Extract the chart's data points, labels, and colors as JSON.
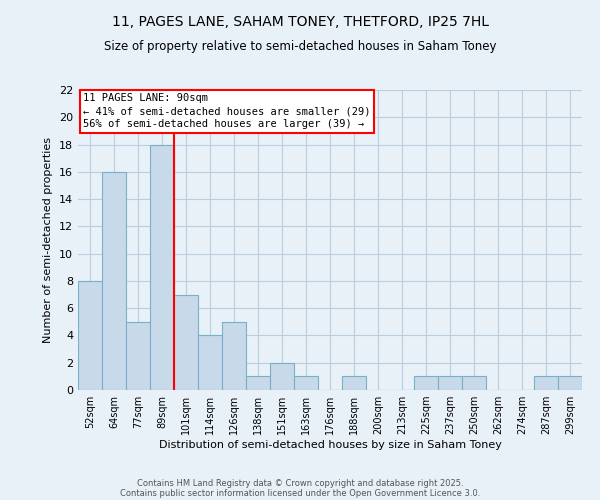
{
  "title1": "11, PAGES LANE, SAHAM TONEY, THETFORD, IP25 7HL",
  "title2": "Size of property relative to semi-detached houses in Saham Toney",
  "xlabel": "Distribution of semi-detached houses by size in Saham Toney",
  "ylabel": "Number of semi-detached properties",
  "bins": [
    "52sqm",
    "64sqm",
    "77sqm",
    "89sqm",
    "101sqm",
    "114sqm",
    "126sqm",
    "138sqm",
    "151sqm",
    "163sqm",
    "176sqm",
    "188sqm",
    "200sqm",
    "213sqm",
    "225sqm",
    "237sqm",
    "250sqm",
    "262sqm",
    "274sqm",
    "287sqm",
    "299sqm"
  ],
  "values": [
    8,
    16,
    5,
    18,
    7,
    4,
    5,
    1,
    2,
    1,
    0,
    1,
    0,
    0,
    1,
    1,
    1,
    0,
    0,
    1,
    1
  ],
  "bar_color": "#c8d9ea",
  "bar_edge_color": "#7aafc8",
  "bar_linewidth": 0.8,
  "annotation_line1": "11 PAGES LANE: 90sqm",
  "annotation_line2": "← 41% of semi-detached houses are smaller (29)",
  "annotation_line3": "56% of semi-detached houses are larger (39) →",
  "annotation_box_color": "white",
  "annotation_box_edge_color": "red",
  "vline_color": "red",
  "vline_x": 3.5,
  "ylim": [
    0,
    22
  ],
  "yticks": [
    0,
    2,
    4,
    6,
    8,
    10,
    12,
    14,
    16,
    18,
    20,
    22
  ],
  "grid_color": "#b8cfe0",
  "bg_color": "#e8f0f8",
  "footer_line1": "Contains HM Land Registry data © Crown copyright and database right 2025.",
  "footer_line2": "Contains public sector information licensed under the Open Government Licence 3.0."
}
